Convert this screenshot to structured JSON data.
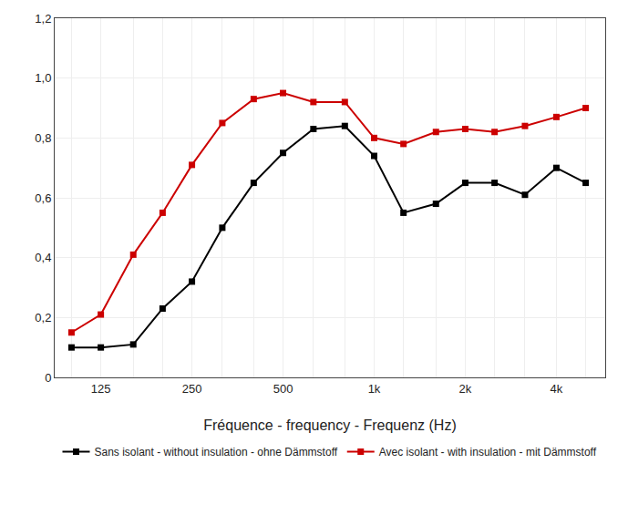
{
  "chart_data": {
    "type": "line",
    "x": [
      100,
      125,
      160,
      200,
      250,
      315,
      400,
      500,
      630,
      800,
      1000,
      1250,
      1600,
      2000,
      2500,
      3150,
      4000,
      5000
    ],
    "series": [
      {
        "name": "Sans isolant - without insulation - ohne Dämmstoff",
        "color": "#000000",
        "values": [
          0.1,
          0.1,
          0.11,
          0.23,
          0.32,
          0.5,
          0.65,
          0.75,
          0.83,
          0.84,
          0.74,
          0.55,
          0.58,
          0.65,
          0.65,
          0.61,
          0.7,
          0.65
        ]
      },
      {
        "name": "Avec isolant - with insulation - mit Dämmstoff",
        "color": "#cc0000",
        "values": [
          0.15,
          0.21,
          0.41,
          0.55,
          0.71,
          0.85,
          0.93,
          0.95,
          0.92,
          0.92,
          0.8,
          0.78,
          0.82,
          0.83,
          0.82,
          0.84,
          0.87,
          0.9
        ]
      }
    ],
    "xlabel": "Fréquence - frequency - Frequenz (Hz)",
    "log": "x",
    "xlim": [
      88,
      5800
    ],
    "xticks": [
      {
        "value": 100,
        "label": ""
      },
      125,
      {
        "value": 160,
        "label": ""
      },
      {
        "value": 200,
        "label": ""
      },
      250,
      {
        "value": 315,
        "label": ""
      },
      {
        "value": 400,
        "label": ""
      },
      500,
      {
        "value": 630,
        "label": ""
      },
      {
        "value": 800,
        "label": ""
      },
      {
        "value": 1000,
        "label": "1k"
      },
      {
        "value": 1250,
        "label": ""
      },
      {
        "value": 1600,
        "label": ""
      },
      {
        "value": 2000,
        "label": "2k"
      },
      {
        "value": 2500,
        "label": ""
      },
      {
        "value": 3150,
        "label": ""
      },
      {
        "value": 4000,
        "label": "4k"
      },
      {
        "value": 5000,
        "label": ""
      }
    ],
    "ylim": [
      0,
      1.2
    ],
    "yticks": [
      0,
      {
        "value": 0.2,
        "label": "0,2"
      },
      {
        "value": 0.4,
        "label": "0,4"
      },
      {
        "value": 0.6,
        "label": "0,6"
      },
      {
        "value": 0.8,
        "label": "0,8"
      },
      {
        "value": 1.0,
        "label": "1,0"
      },
      {
        "value": 1.2,
        "label": "1,2"
      }
    ],
    "grid": true,
    "legend": "bottom",
    "marker": "square"
  }
}
